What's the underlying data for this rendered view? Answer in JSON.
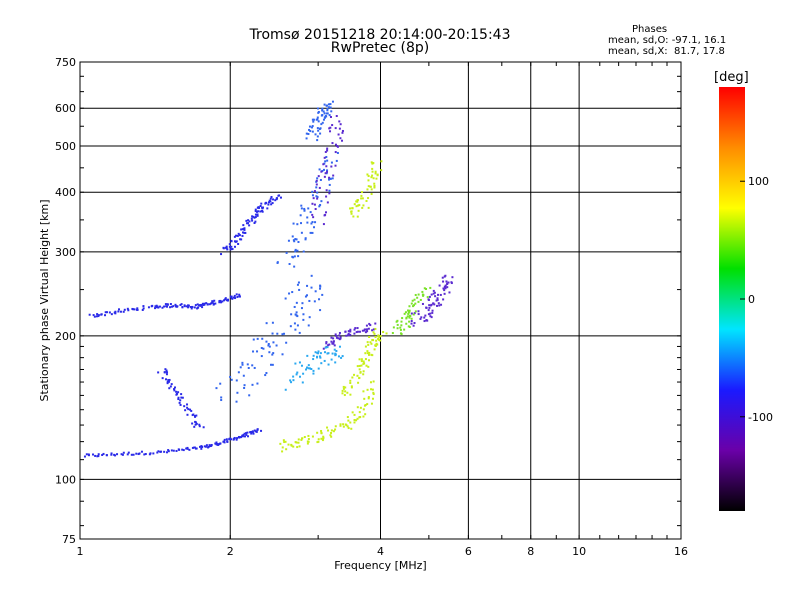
{
  "chart_data": {
    "type": "scatter",
    "title": "Tromsø 20151218 20:14:00-20:15:43",
    "subtitle": "RwPretec (8p)",
    "xlabel": "Frequency [MHz]",
    "ylabel": "Stationary phase Virtual Height [km]",
    "x_scale": "log",
    "y_scale": "log",
    "xlim": [
      1,
      16
    ],
    "ylim": [
      75,
      750
    ],
    "x_ticks": [
      1,
      2,
      4,
      6,
      8,
      10,
      16
    ],
    "y_ticks": [
      75,
      100,
      200,
      300,
      400,
      500,
      600,
      750
    ],
    "grid": true,
    "phase_info": {
      "heading": "Phases",
      "o_line": "mean, sd,O: -97.1, 16.1",
      "x_line": "mean, sd,X:  81.7, 17.8"
    },
    "colorbar": {
      "unit": "[deg]",
      "range": [
        -180,
        180
      ],
      "ticks": [
        100,
        0,
        -100
      ],
      "colors": [
        "#000000",
        "#6a00a8",
        "#1a1aff",
        "#00e5ff",
        "#00e000",
        "#ffff00",
        "#ff8c00",
        "#ff0000"
      ]
    },
    "series": [
      {
        "name": "",
        "color": "#2a2ae8",
        "segments": [
          {
            "f": [
              1.02,
              1.2,
              1.45,
              1.7,
              1.85,
              2.0,
              2.15,
              2.3
            ],
            "h": [
              112,
              113,
              114,
              116,
              118,
              121,
              124,
              127
            ],
            "spread": 0.01
          },
          {
            "f": [
              1.05,
              1.2,
              1.4,
              1.55,
              1.7,
              1.8,
              1.95,
              2.1
            ],
            "h": [
              220,
              225,
              230,
              232,
              230,
              233,
              238,
              245
            ],
            "spread": 0.012
          },
          {
            "f": [
              1.95,
              2.05,
              2.15,
              2.25,
              2.35,
              2.5
            ],
            "h": [
              300,
              315,
              340,
              360,
              378,
              395
            ],
            "spread": 0.02
          },
          {
            "f": [
              1.45,
              1.55,
              1.65,
              1.75
            ],
            "h": [
              170,
              155,
              140,
              128
            ],
            "spread": 0.02
          }
        ]
      },
      {
        "name": "",
        "color": "#3366ee",
        "segments": [
          {
            "f": [
              2.0,
              2.2,
              2.4,
              2.6,
              2.8,
              3.0
            ],
            "h": [
              150,
              170,
              190,
              210,
              235,
              260
            ],
            "spread": 0.08
          },
          {
            "f": [
              2.6,
              2.75,
              2.9,
              3.05,
              3.15
            ],
            "h": [
              280,
              320,
              360,
              420,
              480
            ],
            "spread": 0.05
          },
          {
            "f": [
              2.9,
              3.0,
              3.08,
              3.15
            ],
            "h": [
              520,
              560,
              590,
              610
            ],
            "spread": 0.03
          }
        ]
      },
      {
        "name": "",
        "color": "#5b2bd0",
        "segments": [
          {
            "f": [
              3.0,
              3.1,
              3.2,
              3.3
            ],
            "h": [
              350,
              420,
              500,
              580
            ],
            "spread": 0.04
          },
          {
            "f": [
              4.7,
              4.9,
              5.1,
              5.3,
              5.5
            ],
            "h": [
              215,
              225,
              235,
              250,
              265
            ],
            "spread": 0.04
          },
          {
            "f": [
              3.1,
              3.3,
              3.6,
              3.9
            ],
            "h": [
              190,
              200,
              205,
              210
            ],
            "spread": 0.02
          }
        ]
      },
      {
        "name": "",
        "color": "#c8ef1a",
        "segments": [
          {
            "f": [
              2.5,
              2.8,
              3.1,
              3.4,
              3.7,
              3.9
            ],
            "h": [
              117,
              120,
              124,
              130,
              140,
              160
            ],
            "spread": 0.03
          },
          {
            "f": [
              3.4,
              3.6,
              3.75,
              3.9,
              4.0
            ],
            "h": [
              150,
              165,
              180,
              195,
              205
            ],
            "spread": 0.03
          },
          {
            "f": [
              3.5,
              3.7,
              3.85,
              3.95
            ],
            "h": [
              360,
              380,
              420,
              470
            ],
            "spread": 0.03
          }
        ]
      },
      {
        "name": "",
        "color": "#7be22a",
        "segments": [
          {
            "f": [
              4.3,
              4.5,
              4.7,
              4.9
            ],
            "h": [
              205,
              215,
              230,
              250
            ],
            "spread": 0.03
          }
        ]
      },
      {
        "name": "",
        "color": "#2aa8f0",
        "segments": [
          {
            "f": [
              2.7,
              2.9,
              3.1,
              3.3
            ],
            "h": [
              160,
              175,
              180,
              185
            ],
            "spread": 0.05
          }
        ]
      }
    ]
  }
}
